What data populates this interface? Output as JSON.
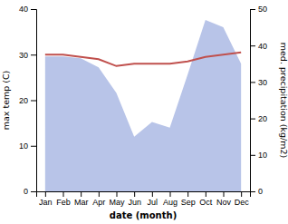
{
  "chart_data": {
    "type": "line",
    "xlabel": "date (month)",
    "ylabel": "max temp (C)",
    "y2label": "med. precipitation (kg/m2)",
    "categories": [
      "Jan",
      "Feb",
      "Mar",
      "Apr",
      "May",
      "Jun",
      "Jul",
      "Aug",
      "Sep",
      "Oct",
      "Nov",
      "Dec"
    ],
    "series": [
      {
        "type": "area",
        "axis": "y2",
        "color": "#b8c4e8",
        "values": [
          37.0,
          37.0,
          36.5,
          34.0,
          27.0,
          15.0,
          19.0,
          17.5,
          32.0,
          47.0,
          45.0,
          35.0
        ]
      },
      {
        "type": "line",
        "color": "#c0504d",
        "values": [
          30.0,
          30.0,
          29.5,
          29.0,
          27.5,
          28.0,
          28.0,
          28.0,
          28.5,
          29.5,
          30.0,
          30.5
        ]
      }
    ],
    "ylim": [
      0,
      40
    ],
    "yticks": [
      0,
      10,
      20,
      30,
      40
    ],
    "y2lim": [
      0,
      50
    ],
    "y2ticks": [
      0,
      10,
      20,
      30,
      40,
      50
    ],
    "grid": false
  }
}
